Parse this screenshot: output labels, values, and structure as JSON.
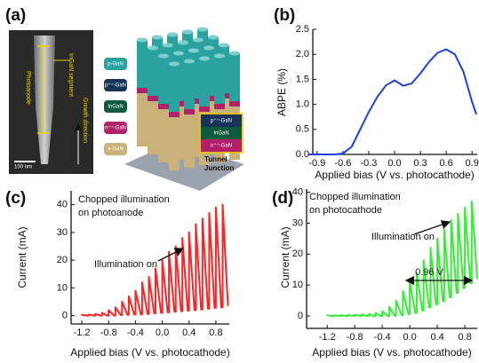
{
  "panel_a": {
    "label": "(a)",
    "sem_labels": [
      "InGaN segment",
      "Photoanode",
      "Growth direction"
    ],
    "scale_bar": "100 nm",
    "layers": [
      "p-GaN",
      "p⁺⁺-GaN",
      "InGaN",
      "n⁺⁺-GaN",
      "n-GaN"
    ],
    "callout": [
      "p⁺⁺-GaN",
      "InGaN",
      "n⁺⁺-GaN"
    ],
    "callout_title": [
      "Tunnel",
      "Junction"
    ]
  },
  "chart_data": [
    {
      "type": "line",
      "label": "(b)",
      "ylabel": "ABPE (%)",
      "xlabel": "Applied bias (V vs. photocathode)",
      "color": "#1e3ee0",
      "x": [
        -1.0,
        -0.9,
        -0.8,
        -0.7,
        -0.6,
        -0.5,
        -0.4,
        -0.3,
        -0.2,
        -0.1,
        0,
        0.1,
        0.2,
        0.3,
        0.4,
        0.5,
        0.6,
        0.7,
        0.8,
        0.9,
        0.95
      ],
      "values": [
        0,
        0,
        0,
        0,
        0.02,
        0.15,
        0.5,
        0.85,
        1.15,
        1.38,
        1.48,
        1.37,
        1.42,
        1.62,
        1.85,
        2.03,
        2.1,
        2.0,
        1.65,
        1.05,
        0.8
      ],
      "xlim": [
        -0.95,
        0.96
      ],
      "ylim": [
        0,
        2.5
      ],
      "xticks": [
        -0.9,
        -0.6,
        -0.3,
        {
          "value": 0,
          "label": "0.0"
        },
        0.3,
        0.6,
        0.9
      ],
      "yticks": [
        {
          "value": 0,
          "label": "0.0"
        },
        0.5,
        {
          "value": 1,
          "label": "1.0"
        },
        1.5,
        {
          "value": 2,
          "label": "2.0"
        },
        2.5
      ]
    },
    {
      "type": "line",
      "label": "(c)",
      "ylabel": "Current (mA)",
      "xlabel": "Applied bias (V vs. photocathode)",
      "color": "#ff2323",
      "annotations": [
        "Chopped illumination",
        "on photoanode",
        "Illumination on"
      ],
      "x": [
        -1.2,
        -1.2,
        -1.12,
        -1.1,
        -1.1,
        -1.02,
        -1.0,
        -1.0,
        -0.92,
        -0.9,
        -0.9,
        -0.82,
        -0.8,
        -0.8,
        -0.72,
        -0.7,
        -0.7,
        -0.62,
        -0.6,
        -0.6,
        -0.52,
        -0.5,
        -0.5,
        -0.42,
        -0.4,
        -0.4,
        -0.32,
        -0.3,
        -0.3,
        -0.22,
        -0.2,
        -0.2,
        -0.12,
        -0.1,
        -0.1,
        -0.02,
        0,
        0,
        0.08,
        0.1,
        0.1,
        0.18,
        0.2,
        0.2,
        0.28,
        0.3,
        0.3,
        0.38,
        0.4,
        0.4,
        0.48,
        0.5,
        0.5,
        0.58,
        0.6,
        0.6,
        0.68,
        0.7,
        0.7,
        0.78,
        0.8,
        0.8,
        0.88,
        0.9,
        0.9,
        0.98
      ],
      "values": [
        0,
        0.3,
        0,
        0,
        0.4,
        0,
        0,
        0.6,
        0,
        0,
        1,
        0,
        0,
        2,
        0,
        0,
        3,
        0.2,
        0.2,
        5,
        0.3,
        0.3,
        7,
        0.4,
        0.4,
        9,
        0.5,
        0.5,
        12,
        0.6,
        0.6,
        14,
        0.8,
        0.8,
        17,
        1,
        1,
        20,
        1.2,
        1.2,
        23,
        1.4,
        1.4,
        25,
        1.6,
        1.6,
        28,
        1.8,
        1.8,
        30,
        2,
        2,
        33,
        2.2,
        2.2,
        35,
        2.5,
        2.5,
        37,
        2.8,
        2.8,
        39,
        3,
        3,
        40,
        3.5
      ],
      "xlim": [
        -1.36,
        1.0
      ],
      "ylim": [
        -3,
        45
      ],
      "xticks": [
        -1.2,
        -0.8,
        -0.4,
        {
          "value": 0,
          "label": "0.0"
        },
        0.4,
        0.8
      ],
      "yticks": [
        0,
        10,
        20,
        30,
        40
      ]
    },
    {
      "type": "line",
      "label": "(d)",
      "ylabel": "Current (mA)",
      "xlabel": "Applied bias (V vs. photocathode)",
      "color": "#33ee33",
      "annotations": [
        "Chopped illumination",
        "on photocathode",
        "Illumination on",
        "0.96 V"
      ],
      "x": [
        -1.2,
        -1.2,
        -1.12,
        -1.1,
        -1.1,
        -1.02,
        -1.0,
        -1.0,
        -0.92,
        -0.9,
        -0.9,
        -0.82,
        -0.8,
        -0.8,
        -0.72,
        -0.7,
        -0.7,
        -0.62,
        -0.6,
        -0.6,
        -0.52,
        -0.5,
        -0.5,
        -0.42,
        -0.4,
        -0.4,
        -0.32,
        -0.3,
        -0.3,
        -0.22,
        -0.2,
        -0.2,
        -0.12,
        -0.1,
        -0.1,
        -0.02,
        0,
        0,
        0.08,
        0.1,
        0.1,
        0.18,
        0.2,
        0.2,
        0.28,
        0.3,
        0.3,
        0.38,
        0.4,
        0.4,
        0.48,
        0.5,
        0.5,
        0.58,
        0.6,
        0.6,
        0.68,
        0.7,
        0.7,
        0.78,
        0.8,
        0.8,
        0.88,
        0.9,
        0.9,
        0.98
      ],
      "values": [
        0,
        0.2,
        0,
        0,
        0.2,
        0,
        0,
        0.3,
        0,
        0,
        0.3,
        0,
        0,
        0.4,
        0,
        0,
        0.5,
        0,
        0,
        0.6,
        0,
        0,
        1,
        0,
        0,
        1.5,
        0,
        0,
        3,
        0.1,
        0.1,
        5,
        0.3,
        0.3,
        8,
        0.6,
        0.6,
        11,
        1,
        1,
        14,
        1.8,
        1.8,
        18,
        2.8,
        2.8,
        22,
        3.8,
        3.8,
        25,
        4.8,
        4.8,
        28,
        6,
        6,
        31,
        7.5,
        7.5,
        33,
        9,
        9,
        35,
        10.5,
        10.5,
        37,
        12
      ],
      "xlim": [
        -1.5,
        0.98
      ],
      "ylim": [
        -4,
        41
      ],
      "xticks": [
        -1.2,
        -0.8,
        -0.4,
        {
          "value": 0,
          "label": "0.0"
        },
        0.4,
        0.8
      ],
      "yticks": [
        0,
        10,
        20,
        30,
        40
      ]
    }
  ]
}
